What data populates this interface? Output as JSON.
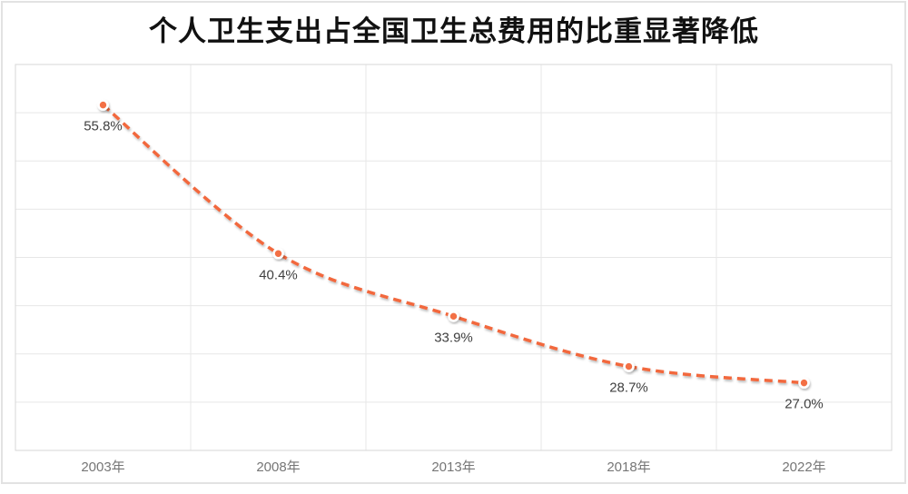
{
  "page": {
    "background": "#ffffff",
    "card_border_color": "#e2e2e2"
  },
  "chart_data": {
    "type": "line",
    "title": "个人卫生支出占全国卫生总费用的比重显著降低",
    "categories": [
      "2003年",
      "2008年",
      "2013年",
      "2018年",
      "2022年"
    ],
    "series": [
      {
        "name": "个人卫生支出占全国卫生总费用的比重",
        "values": [
          55.8,
          40.4,
          33.9,
          28.7,
          27.0
        ]
      }
    ],
    "data_labels": [
      "55.8%",
      "40.4%",
      "33.9%",
      "28.7%",
      "27.0%"
    ],
    "xlabel": "",
    "ylabel": "",
    "ylim": [
      20,
      60
    ],
    "y_step": 5,
    "grid": "horizontal and vertical gridlines, no axis tick labels on y",
    "legend": "none",
    "line_style": "dashed, smoothed",
    "line_color": "#f2673c",
    "marker_color": "#f37044",
    "marker_ring_color": "#ffffff",
    "gridline_color": "#e7e7e7",
    "plot_border_color": "#d7d7d7",
    "title_color": "#111111",
    "data_label_color": "#404040",
    "axis_label_color": "#767676"
  }
}
